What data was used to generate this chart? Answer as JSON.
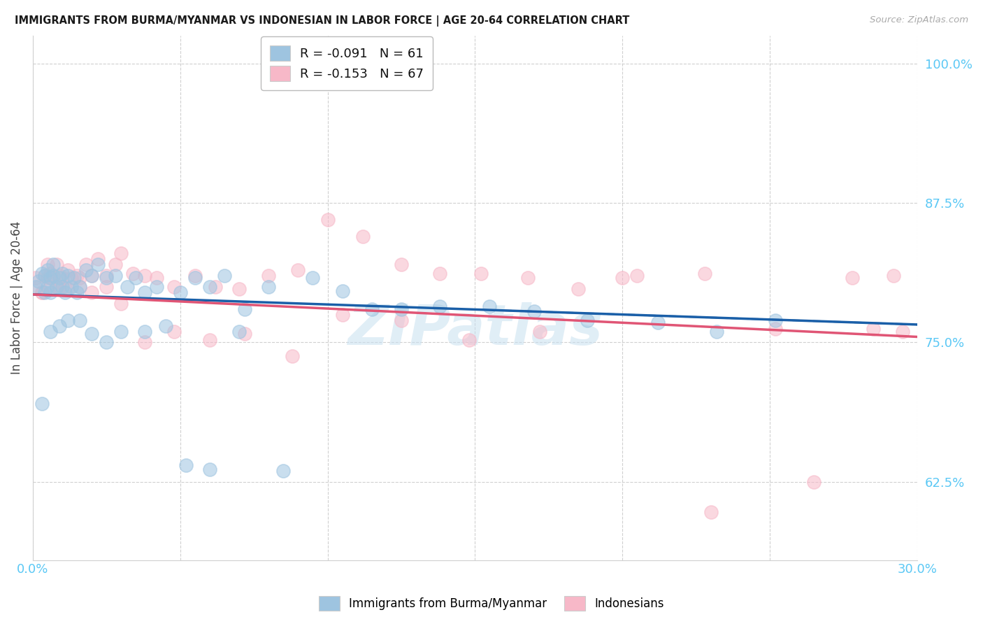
{
  "title": "IMMIGRANTS FROM BURMA/MYANMAR VS INDONESIAN IN LABOR FORCE | AGE 20-64 CORRELATION CHART",
  "source": "Source: ZipAtlas.com",
  "ylabel": "In Labor Force | Age 20-64",
  "xlim": [
    0.0,
    0.3
  ],
  "ylim": [
    0.555,
    1.025
  ],
  "yticks": [
    0.625,
    0.75,
    0.875,
    1.0
  ],
  "ytick_labels": [
    "62.5%",
    "75.0%",
    "87.5%",
    "100.0%"
  ],
  "xticks": [
    0.0,
    0.05,
    0.1,
    0.15,
    0.2,
    0.25,
    0.3
  ],
  "xtick_show": [
    "0.0%",
    "",
    "",
    "",
    "",
    "",
    "30.0%"
  ],
  "legend_blue": "R = -0.091   N = 61",
  "legend_pink": "R = -0.153   N = 67",
  "color_blue": "#9ec4e0",
  "color_pink": "#f7b8c8",
  "line_color_blue": "#1a5fa8",
  "line_color_pink": "#e05575",
  "grid_color": "#d0d0d0",
  "tick_color": "#5bc8f5",
  "title_color": "#1a1a1a",
  "source_color": "#aaaaaa",
  "ylabel_color": "#444444",
  "watermark_color": "#c8e0f0",
  "background": "#ffffff",
  "line_y0_blue": 0.793,
  "line_y1_blue": 0.766,
  "line_y0_pink": 0.793,
  "line_y1_pink": 0.755,
  "blue_x": [
    0.001,
    0.002,
    0.003,
    0.004,
    0.004,
    0.005,
    0.005,
    0.006,
    0.006,
    0.007,
    0.007,
    0.008,
    0.009,
    0.01,
    0.01,
    0.011,
    0.012,
    0.013,
    0.014,
    0.015,
    0.016,
    0.018,
    0.02,
    0.022,
    0.025,
    0.028,
    0.032,
    0.035,
    0.038,
    0.042,
    0.05,
    0.055,
    0.06,
    0.065,
    0.072,
    0.08,
    0.095,
    0.105,
    0.115,
    0.125,
    0.138,
    0.155,
    0.17,
    0.188,
    0.212,
    0.232,
    0.252,
    0.003,
    0.006,
    0.009,
    0.012,
    0.016,
    0.02,
    0.025,
    0.03,
    0.038,
    0.045,
    0.052,
    0.06,
    0.07,
    0.085
  ],
  "blue_y": [
    0.8,
    0.805,
    0.812,
    0.795,
    0.81,
    0.8,
    0.815,
    0.808,
    0.795,
    0.81,
    0.82,
    0.8,
    0.808,
    0.8,
    0.812,
    0.795,
    0.81,
    0.8,
    0.808,
    0.795,
    0.8,
    0.815,
    0.81,
    0.82,
    0.808,
    0.81,
    0.8,
    0.808,
    0.795,
    0.8,
    0.795,
    0.808,
    0.8,
    0.81,
    0.78,
    0.8,
    0.808,
    0.796,
    0.78,
    0.78,
    0.782,
    0.782,
    0.778,
    0.77,
    0.768,
    0.76,
    0.77,
    0.695,
    0.76,
    0.765,
    0.77,
    0.77,
    0.758,
    0.75,
    0.76,
    0.76,
    0.765,
    0.64,
    0.636,
    0.76,
    0.635
  ],
  "pink_x": [
    0.001,
    0.002,
    0.003,
    0.004,
    0.005,
    0.005,
    0.006,
    0.006,
    0.007,
    0.008,
    0.008,
    0.009,
    0.01,
    0.011,
    0.012,
    0.013,
    0.015,
    0.016,
    0.018,
    0.02,
    0.022,
    0.025,
    0.028,
    0.03,
    0.034,
    0.038,
    0.042,
    0.048,
    0.055,
    0.062,
    0.07,
    0.08,
    0.09,
    0.1,
    0.112,
    0.125,
    0.138,
    0.152,
    0.168,
    0.185,
    0.205,
    0.228,
    0.252,
    0.278,
    0.292,
    0.003,
    0.006,
    0.009,
    0.012,
    0.016,
    0.02,
    0.025,
    0.03,
    0.038,
    0.048,
    0.06,
    0.072,
    0.088,
    0.105,
    0.125,
    0.148,
    0.172,
    0.2,
    0.23,
    0.265,
    0.285,
    0.295
  ],
  "pink_y": [
    0.808,
    0.8,
    0.795,
    0.81,
    0.808,
    0.82,
    0.8,
    0.812,
    0.808,
    0.8,
    0.82,
    0.81,
    0.808,
    0.8,
    0.815,
    0.808,
    0.81,
    0.8,
    0.82,
    0.81,
    0.825,
    0.81,
    0.82,
    0.83,
    0.812,
    0.81,
    0.808,
    0.8,
    0.81,
    0.8,
    0.798,
    0.81,
    0.815,
    0.86,
    0.845,
    0.82,
    0.812,
    0.812,
    0.808,
    0.798,
    0.81,
    0.812,
    0.762,
    0.808,
    0.81,
    0.795,
    0.808,
    0.8,
    0.798,
    0.808,
    0.795,
    0.8,
    0.785,
    0.75,
    0.76,
    0.752,
    0.758,
    0.738,
    0.775,
    0.77,
    0.752,
    0.76,
    0.808,
    0.598,
    0.625,
    0.762,
    0.76
  ]
}
